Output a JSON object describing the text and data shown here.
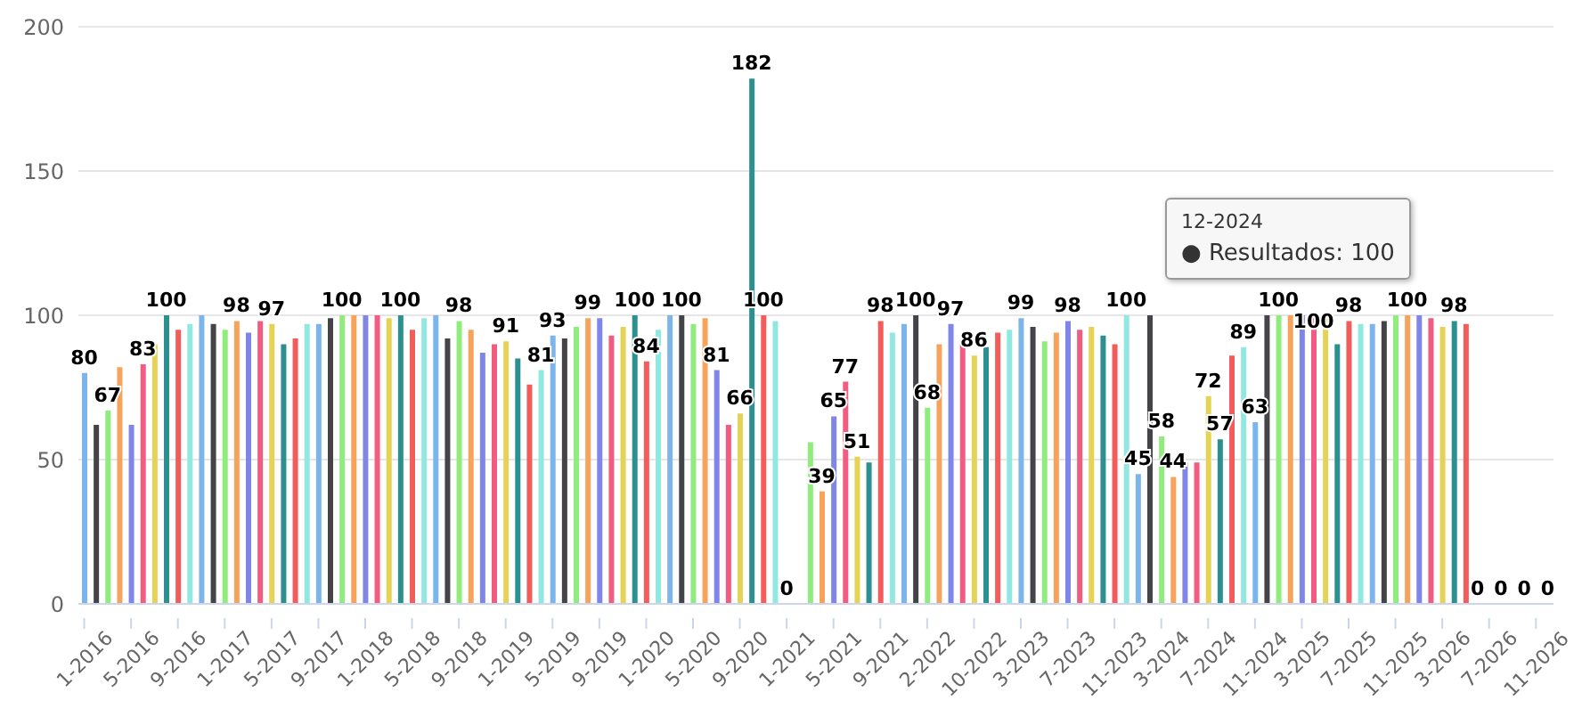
{
  "chart_data": {
    "type": "bar",
    "categories": [
      "1-2016",
      null,
      null,
      null,
      "5-2016",
      null,
      null,
      null,
      "9-2016",
      null,
      null,
      null,
      "1-2017",
      null,
      null,
      null,
      "5-2017",
      null,
      null,
      null,
      "9-2017",
      null,
      null,
      null,
      "1-2018",
      null,
      null,
      null,
      "5-2018",
      null,
      null,
      null,
      "9-2018",
      null,
      null,
      null,
      "1-2019",
      null,
      null,
      null,
      "5-2019",
      null,
      null,
      null,
      "9-2019",
      null,
      null,
      null,
      "1-2020",
      null,
      null,
      null,
      "5-2020",
      null,
      null,
      null,
      "9-2020",
      null,
      null,
      null,
      "1-2021",
      null,
      null,
      null,
      "5-2021",
      null,
      null,
      null,
      "9-2021",
      null,
      null,
      null,
      "2-2022",
      null,
      null,
      null,
      "10-2022",
      null,
      null,
      null,
      "3-2023",
      null,
      null,
      null,
      "7-2023",
      null,
      null,
      null,
      "11-2023",
      null,
      null,
      null,
      "3-2024",
      null,
      null,
      null,
      "7-2024",
      null,
      null,
      null,
      "11-2024",
      null,
      null,
      null,
      "3-2025",
      null,
      null,
      null,
      "7-2025",
      null,
      null,
      null,
      "11-2025",
      null,
      null,
      null,
      "3-2026",
      null,
      null,
      null,
      "7-2026",
      null,
      null,
      null,
      "11-2026",
      null
    ],
    "values": [
      80,
      62,
      67,
      82,
      62,
      83,
      90,
      100,
      95,
      97,
      100,
      97,
      95,
      98,
      94,
      98,
      97,
      90,
      92,
      97,
      97,
      99,
      100,
      100,
      100,
      100,
      99,
      100,
      95,
      99,
      100,
      92,
      98,
      95,
      87,
      90,
      91,
      85,
      76,
      81,
      93,
      92,
      96,
      99,
      99,
      93,
      96,
      100,
      84,
      95,
      100,
      100,
      97,
      99,
      81,
      62,
      66,
      182,
      100,
      98,
      0,
      null,
      56,
      39,
      65,
      77,
      51,
      49,
      98,
      94,
      97,
      100,
      68,
      90,
      97,
      90,
      86,
      89,
      94,
      95,
      99,
      96,
      91,
      94,
      98,
      95,
      96,
      93,
      90,
      100,
      45,
      100,
      58,
      44,
      49,
      49,
      72,
      57,
      86,
      89,
      63,
      100,
      100,
      100,
      100,
      100,
      100,
      90,
      98,
      97,
      97,
      98,
      100,
      100,
      100,
      99,
      96,
      98,
      97,
      0,
      0,
      0,
      0,
      0,
      0,
      0
    ],
    "value_labels": [
      "80",
      null,
      "67",
      null,
      null,
      "83",
      null,
      "100",
      null,
      null,
      null,
      null,
      null,
      "98",
      null,
      null,
      "97",
      null,
      null,
      null,
      null,
      null,
      "100",
      null,
      null,
      null,
      null,
      "100",
      null,
      null,
      null,
      null,
      "98",
      null,
      null,
      null,
      "91",
      null,
      null,
      "81",
      "93",
      null,
      null,
      "99",
      null,
      null,
      null,
      "100",
      "84",
      null,
      null,
      "100",
      null,
      null,
      "81",
      null,
      "66",
      "182",
      "100",
      null,
      "0",
      null,
      null,
      "39",
      "65",
      "77",
      "51",
      null,
      "98",
      null,
      null,
      "100",
      "68",
      null,
      "97",
      null,
      "86",
      null,
      null,
      null,
      "99",
      null,
      null,
      null,
      "98",
      null,
      null,
      null,
      null,
      "100",
      "45",
      null,
      "58",
      "44",
      null,
      null,
      "72",
      "57",
      null,
      "89",
      "63",
      null,
      "100",
      null,
      null,
      "100",
      null,
      null,
      "98",
      null,
      null,
      null,
      null,
      "100",
      null,
      null,
      null,
      "98",
      null,
      "0",
      null,
      "0",
      null,
      "0",
      null,
      "0"
    ],
    "colors": [
      "#7cb5ec",
      "#434348",
      "#90ed7d",
      "#f7a35c",
      "#8085e9",
      "#f15c80",
      "#e4d354",
      "#2b908f",
      "#f45b5b",
      "#91e8e1",
      "#7cb5ec",
      "#434348",
      "#90ed7d",
      "#f7a35c",
      "#8085e9",
      "#f15c80",
      "#e4d354",
      "#2b908f",
      "#f45b5b",
      "#91e8e1",
      "#7cb5ec",
      "#434348",
      "#90ed7d",
      "#f7a35c",
      "#8085e9",
      "#f15c80",
      "#e4d354",
      "#2b908f",
      "#f45b5b",
      "#91e8e1",
      "#7cb5ec",
      "#434348",
      "#90ed7d",
      "#f7a35c",
      "#8085e9",
      "#f15c80",
      "#e4d354",
      "#2b908f",
      "#f45b5b",
      "#91e8e1",
      "#7cb5ec",
      "#434348",
      "#90ed7d",
      "#f7a35c",
      "#8085e9",
      "#f15c80",
      "#e4d354",
      "#2b908f",
      "#f45b5b",
      "#91e8e1",
      "#7cb5ec",
      "#434348",
      "#90ed7d",
      "#f7a35c",
      "#8085e9",
      "#f15c80",
      "#e4d354",
      "#2b908f",
      "#f45b5b",
      "#91e8e1",
      "#7cb5ec",
      "#434348",
      "#90ed7d",
      "#f7a35c",
      "#8085e9",
      "#f15c80",
      "#e4d354",
      "#2b908f",
      "#f45b5b",
      "#91e8e1",
      "#7cb5ec",
      "#434348",
      "#90ed7d",
      "#f7a35c",
      "#8085e9",
      "#f15c80",
      "#e4d354",
      "#2b908f",
      "#f45b5b",
      "#91e8e1",
      "#7cb5ec",
      "#434348",
      "#90ed7d",
      "#f7a35c",
      "#8085e9",
      "#f15c80",
      "#e4d354",
      "#2b908f",
      "#f45b5b",
      "#91e8e1",
      "#7cb5ec",
      "#434348",
      "#90ed7d",
      "#f7a35c",
      "#8085e9",
      "#f15c80",
      "#e4d354",
      "#2b908f",
      "#f45b5b",
      "#91e8e1",
      "#7cb5ec",
      "#434348",
      "#90ed7d",
      "#f7a35c",
      "#8085e9",
      "#f15c80",
      "#e4d354",
      "#2b908f",
      "#f45b5b",
      "#91e8e1",
      "#7cb5ec",
      "#434348",
      "#90ed7d",
      "#f7a35c",
      "#8085e9",
      "#f15c80",
      "#e4d354",
      "#2b908f",
      "#f45b5b",
      "#91e8e1",
      "#7cb5ec",
      "#434348",
      "#90ed7d",
      "#f7a35c",
      "#8085e9",
      "#f15c80"
    ],
    "ylim": [
      0,
      200
    ],
    "yticks": [
      0,
      50,
      100,
      150,
      200
    ],
    "grid": "y",
    "legend": false,
    "annotations": [
      "12-2024",
      "● Resultados: 100"
    ]
  }
}
